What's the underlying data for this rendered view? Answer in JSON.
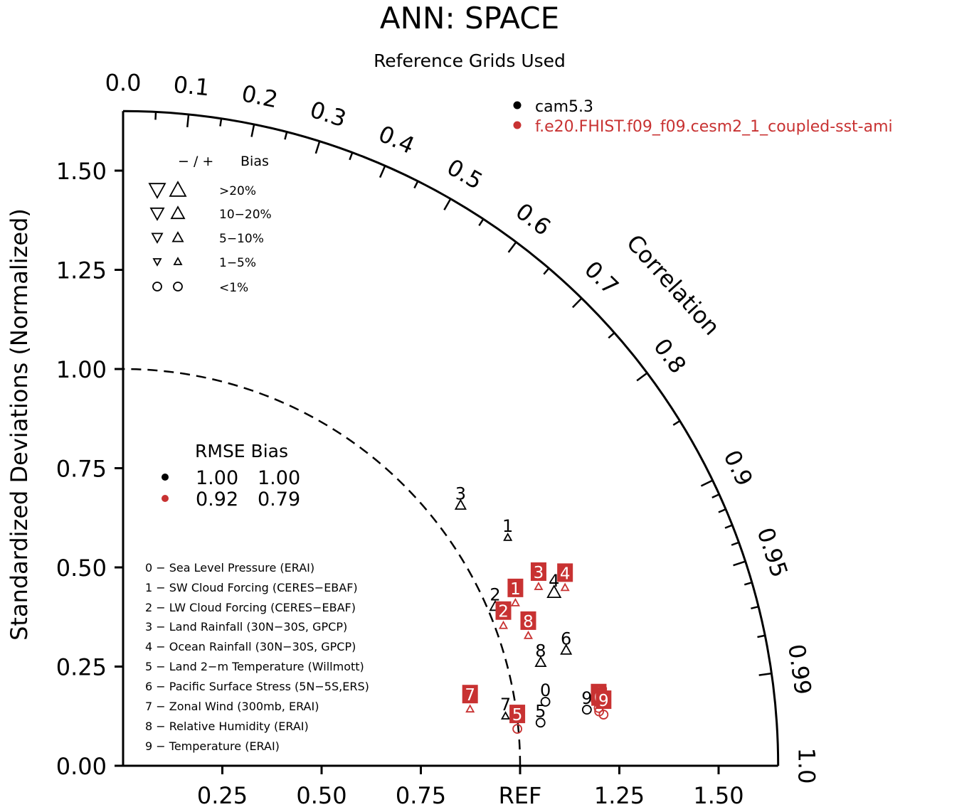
{
  "chart_data": {
    "type": "scatter",
    "subtype": "taylor-diagram",
    "title": "ANN: SPACE",
    "subtitle": "Reference Grids Used",
    "ylabel": "Standardized Deviations (Normalized)",
    "arc_label": "Correlation",
    "ref_label": "REF",
    "ylim": [
      0,
      1.65
    ],
    "xlim": [
      0,
      1.65
    ],
    "y_ticks": [
      "0.00",
      "0.25",
      "0.50",
      "0.75",
      "1.00",
      "1.25",
      "1.50"
    ],
    "x_ticks": [
      "0.25",
      "0.50",
      "0.75",
      "REF",
      "1.25",
      "1.50"
    ],
    "correlation_ticks": [
      "0.0",
      "0.1",
      "0.2",
      "0.3",
      "0.4",
      "0.5",
      "0.6",
      "0.7",
      "0.8",
      "0.9",
      "0.95",
      "0.99",
      "1.0"
    ],
    "grid": false,
    "reference_arc": 1.0,
    "legend_position": "top-right",
    "series": [
      {
        "name": "cam5.3",
        "color": "#000000",
        "rmse": "1.00",
        "bias": "1.00",
        "points": [
          {
            "id": "0",
            "sd": 1.08,
            "corr": 0.985,
            "bias_class": "<1%",
            "sign": "+"
          },
          {
            "id": "1",
            "sd": 1.14,
            "corr": 0.85,
            "bias_class": "1-5%",
            "sign": "+"
          },
          {
            "id": "2",
            "sd": 1.03,
            "corr": 0.91,
            "bias_class": "5-10%",
            "sign": "+"
          },
          {
            "id": "3",
            "sd": 1.09,
            "corr": 0.78,
            "bias_class": "5-10%",
            "sign": "+"
          },
          {
            "id": "4",
            "sd": 1.18,
            "corr": 0.92,
            "bias_class": "10-20%",
            "sign": "+"
          },
          {
            "id": "5",
            "sd": 1.06,
            "corr": 0.992,
            "bias_class": "<1%",
            "sign": "+"
          },
          {
            "id": "6",
            "sd": 1.16,
            "corr": 0.962,
            "bias_class": "5-10%",
            "sign": "+"
          },
          {
            "id": "7",
            "sd": 0.975,
            "corr": 0.988,
            "bias_class": "1-5%",
            "sign": "+"
          },
          {
            "id": "8",
            "sd": 1.09,
            "corr": 0.965,
            "bias_class": "5-10%",
            "sign": "+"
          },
          {
            "id": "9",
            "sd": 1.18,
            "corr": 0.99,
            "bias_class": "<1%",
            "sign": "+"
          }
        ]
      },
      {
        "name": "f.e20.FHIST.f09_f09.cesm2_1_coupled-sst-ami",
        "color": "#c83232",
        "rmse": "0.92",
        "bias": "0.79",
        "points": [
          {
            "id": "0",
            "sd": 1.21,
            "corr": 0.99,
            "bias_class": "<1%",
            "sign": "+"
          },
          {
            "id": "1",
            "sd": 1.08,
            "corr": 0.915,
            "bias_class": "1-5%",
            "sign": "+"
          },
          {
            "id": "2",
            "sd": 1.03,
            "corr": 0.93,
            "bias_class": "1-5%",
            "sign": "+"
          },
          {
            "id": "3",
            "sd": 1.15,
            "corr": 0.91,
            "bias_class": "1-5%",
            "sign": "+"
          },
          {
            "id": "4",
            "sd": 1.21,
            "corr": 0.92,
            "bias_class": "1-5%",
            "sign": "+"
          },
          {
            "id": "5",
            "sd": 1.0,
            "corr": 0.993,
            "bias_class": "<1%",
            "sign": "+"
          },
          {
            "id": "6",
            "sd": 1.21,
            "corr": 0.991,
            "bias_class": "<1%",
            "sign": "+"
          },
          {
            "id": "7",
            "sd": 0.89,
            "corr": 0.982,
            "bias_class": "1-5%",
            "sign": "+"
          },
          {
            "id": "8",
            "sd": 1.08,
            "corr": 0.945,
            "bias_class": "1-5%",
            "sign": "+"
          },
          {
            "id": "9",
            "sd": 1.22,
            "corr": 0.992,
            "bias_class": "<1%",
            "sign": "+"
          }
        ]
      }
    ]
  },
  "legend": {
    "series_labels": [
      "cam5.3",
      "f.e20.FHIST.f09_f09.cesm2_1_coupled-sst-ami"
    ]
  },
  "bias_legend": {
    "header_sign": "−  /  +",
    "header_label": "Bias",
    "rows": [
      ">20%",
      "10−20%",
      "5−10%",
      "1−5%",
      "<1%"
    ]
  },
  "rmse_table": {
    "header": "RMSE Bias",
    "rows": [
      {
        "rmse": "1.00",
        "bias": "1.00",
        "color": "#000000"
      },
      {
        "rmse": "0.92",
        "bias": "0.79",
        "color": "#c83232"
      }
    ]
  },
  "variables": [
    "0 − Sea Level Pressure (ERAI)",
    "1 − SW Cloud Forcing (CERES−EBAF)",
    "2 − LW Cloud Forcing (CERES−EBAF)",
    "3 − Land Rainfall (30N−30S, GPCP)",
    "4 − Ocean Rainfall (30N−30S, GPCP)",
    "5 − Land 2−m Temperature (Willmott)",
    "6 − Pacific Surface Stress (5N−5S,ERS)",
    "7 − Zonal Wind (300mb, ERAI)",
    "8 − Relative Humidity (ERAI)",
    "9 − Temperature (ERAI)"
  ]
}
